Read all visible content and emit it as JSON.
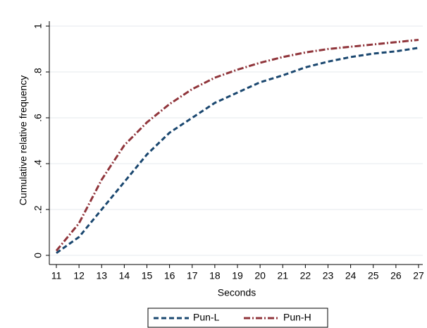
{
  "chart_data": {
    "type": "line",
    "x_label": "Seconds",
    "y_label": "Cumulative relative frequency",
    "x": [
      11,
      12,
      13,
      14,
      15,
      16,
      17,
      18,
      19,
      20,
      21,
      22,
      23,
      24,
      25,
      26,
      27
    ],
    "series": [
      {
        "name": "Pun-L",
        "color": "#1a476f",
        "dash": "dash",
        "values": [
          0.01,
          0.08,
          0.2,
          0.32,
          0.44,
          0.535,
          0.6,
          0.665,
          0.71,
          0.755,
          0.785,
          0.82,
          0.845,
          0.865,
          0.88,
          0.89,
          0.905
        ]
      },
      {
        "name": "Pun-H",
        "color": "#90353b",
        "dash": "dashdot",
        "values": [
          0.02,
          0.14,
          0.33,
          0.48,
          0.58,
          0.66,
          0.725,
          0.775,
          0.81,
          0.84,
          0.865,
          0.885,
          0.9,
          0.91,
          0.92,
          0.93,
          0.94
        ]
      }
    ],
    "xlim": [
      11,
      27
    ],
    "xticks": [
      11,
      12,
      13,
      14,
      15,
      16,
      17,
      18,
      19,
      20,
      21,
      22,
      23,
      24,
      25,
      26,
      27
    ],
    "ylim": [
      0,
      1
    ],
    "yticks": [
      0,
      {
        "value": 0.2,
        "label": ".2"
      },
      {
        "value": 0.4,
        "label": ".4"
      },
      {
        "value": 0.6,
        "label": ".6"
      },
      {
        "value": 0.8,
        "label": ".8"
      },
      1
    ],
    "grid": true,
    "legend": "bottom"
  }
}
